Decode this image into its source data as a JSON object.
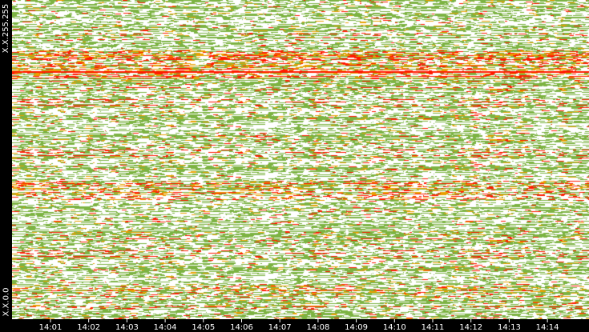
{
  "chart_data": {
    "type": "heatmap",
    "title": "",
    "xlabel": "",
    "ylabel": "",
    "y_ticks": [
      "X.X.255.255",
      "X.X.0.0"
    ],
    "x_ticks": [
      "14:01",
      "14:02",
      "14:03",
      "14:04",
      "14:05",
      "14:06",
      "14:07",
      "14:08",
      "14:09",
      "14:10",
      "14:11",
      "14:12",
      "14:13",
      "14:14"
    ],
    "x_range": [
      "14:00",
      "14:15"
    ],
    "y_range": [
      "X.X.0.0",
      "X.X.255.255"
    ],
    "colors": {
      "background": "#ffffff",
      "low": "#7cb342",
      "medium": "#e8a000",
      "high": "#ff1a00",
      "frame": "#000000",
      "text": "#ffffff"
    }
  }
}
